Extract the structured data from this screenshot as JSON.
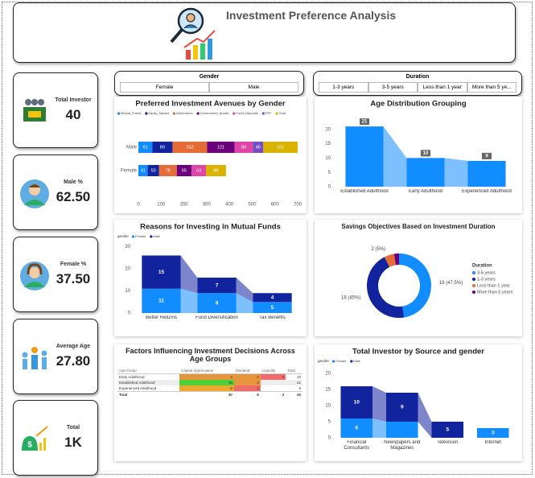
{
  "header": {
    "title": "Investment Preference Analysis"
  },
  "kpis": [
    {
      "label": "Total Investor",
      "value": "40"
    },
    {
      "label": "Male %",
      "value": "62.50"
    },
    {
      "label": "Female %",
      "value": "37.50"
    },
    {
      "label": "Average Age",
      "value": "27.80"
    },
    {
      "label": "Total",
      "value": "1K"
    }
  ],
  "slicers": [
    {
      "title": "Gender",
      "options": [
        "Female",
        "Male"
      ]
    },
    {
      "title": "Duration",
      "options": [
        "1-3 years",
        "3-5 years",
        "Less than 1 year",
        "More than 5 ye..."
      ]
    }
  ],
  "chart_data": [
    {
      "type": "hbar",
      "title": "Preferred Investment Avenues by Gender",
      "categories": [
        "Male",
        "Female"
      ],
      "series": [
        {
          "name": "Mutual_Funds",
          "color": "#118dff",
          "values": [
            61,
            41
          ]
        },
        {
          "name": "Equity_Market",
          "color": "#12239e",
          "values": [
            89,
            50
          ]
        },
        {
          "name": "Debentures",
          "color": "#e66c37",
          "values": [
            152,
            78
          ]
        },
        {
          "name": "Government_Bonds",
          "color": "#6b007b",
          "values": [
            121,
            65
          ]
        },
        {
          "name": "Fixed_Deposits",
          "color": "#e044a7",
          "values": [
            80,
            63
          ]
        },
        {
          "name": "PPF",
          "color": "#744ec2",
          "values": [
            46,
            null
          ]
        },
        {
          "name": "Gold",
          "color": "#d9b300",
          "values": [
            151,
            88
          ]
        }
      ],
      "xlim": [
        0,
        700
      ],
      "xticks": [
        0,
        100,
        200,
        300,
        400,
        500,
        600,
        700
      ],
      "grid": false
    },
    {
      "type": "bar",
      "title": "Age Distribution Grouping",
      "categories": [
        "Established Adulthood",
        "Early Adulthood",
        "Experienced Adulthood"
      ],
      "values": [
        21,
        10,
        9
      ],
      "color": "#118dff",
      "ylim": [
        0,
        23
      ],
      "yticks": [
        0,
        5,
        10,
        15,
        20
      ],
      "grid": false
    },
    {
      "type": "stacked",
      "title": "Reasons for Investing in Mutual Funds",
      "legend_title": "gender",
      "categories": [
        "Better Returns",
        "Fund Diversification",
        "Tax Benefits"
      ],
      "series": [
        {
          "name": "Female",
          "color": "#118dff",
          "values": [
            11,
            9,
            5
          ]
        },
        {
          "name": "Male",
          "color": "#12239e",
          "values": [
            15,
            7,
            4
          ]
        }
      ],
      "ylim": [
        0,
        32
      ],
      "yticks": [
        0,
        10,
        20,
        30
      ],
      "grid": false
    },
    {
      "type": "donut",
      "title": "Savings Objectives Based on Investment Duration",
      "legend_title": "Duration",
      "categories": [
        "3-5 years",
        "1-3 years",
        "Less than 1 year",
        "More than 5 years"
      ],
      "values": [
        19,
        18,
        2,
        1
      ],
      "value_labels": [
        "19 (47.5%)",
        "18 (45%)",
        "2 (5%)",
        null
      ],
      "colors": [
        "#118dff",
        "#12239e",
        "#e66c37",
        "#6b007b"
      ]
    },
    {
      "type": "stacked",
      "title": "Total Investor by Source and gender",
      "legend_title": "gender",
      "categories": [
        "Financial Consultants",
        "Newspapers and Magazines",
        "Television",
        "Internet"
      ],
      "series": [
        {
          "name": "Female",
          "color": "#118dff",
          "values": [
            6,
            5,
            null,
            3
          ],
          "value_labels": [
            "6",
            null,
            null,
            "3"
          ]
        },
        {
          "name": "Male",
          "color": "#12239e",
          "values": [
            10,
            9,
            5,
            null
          ],
          "value_labels": [
            "10",
            "9",
            "5",
            null
          ]
        }
      ],
      "ylim": [
        0,
        22
      ],
      "yticks": [
        0,
        5,
        10,
        15,
        20
      ],
      "grid": false
    }
  ],
  "table": {
    "title": "Factors Influencing Investment Decisions Across Age Groups",
    "columns": [
      "Age Group",
      "Capital Appreciation",
      "Dividend",
      "Liquidity",
      "Total"
    ],
    "rows": [
      [
        "Early Adulthood",
        4,
        4,
        2,
        10
      ],
      [
        "Established Adulthood",
        18,
        3,
        null,
        21
      ],
      [
        "Experienced Adulthood",
        8,
        1,
        null,
        9
      ]
    ],
    "total": [
      "Total",
      30,
      8,
      2,
      40
    ]
  }
}
